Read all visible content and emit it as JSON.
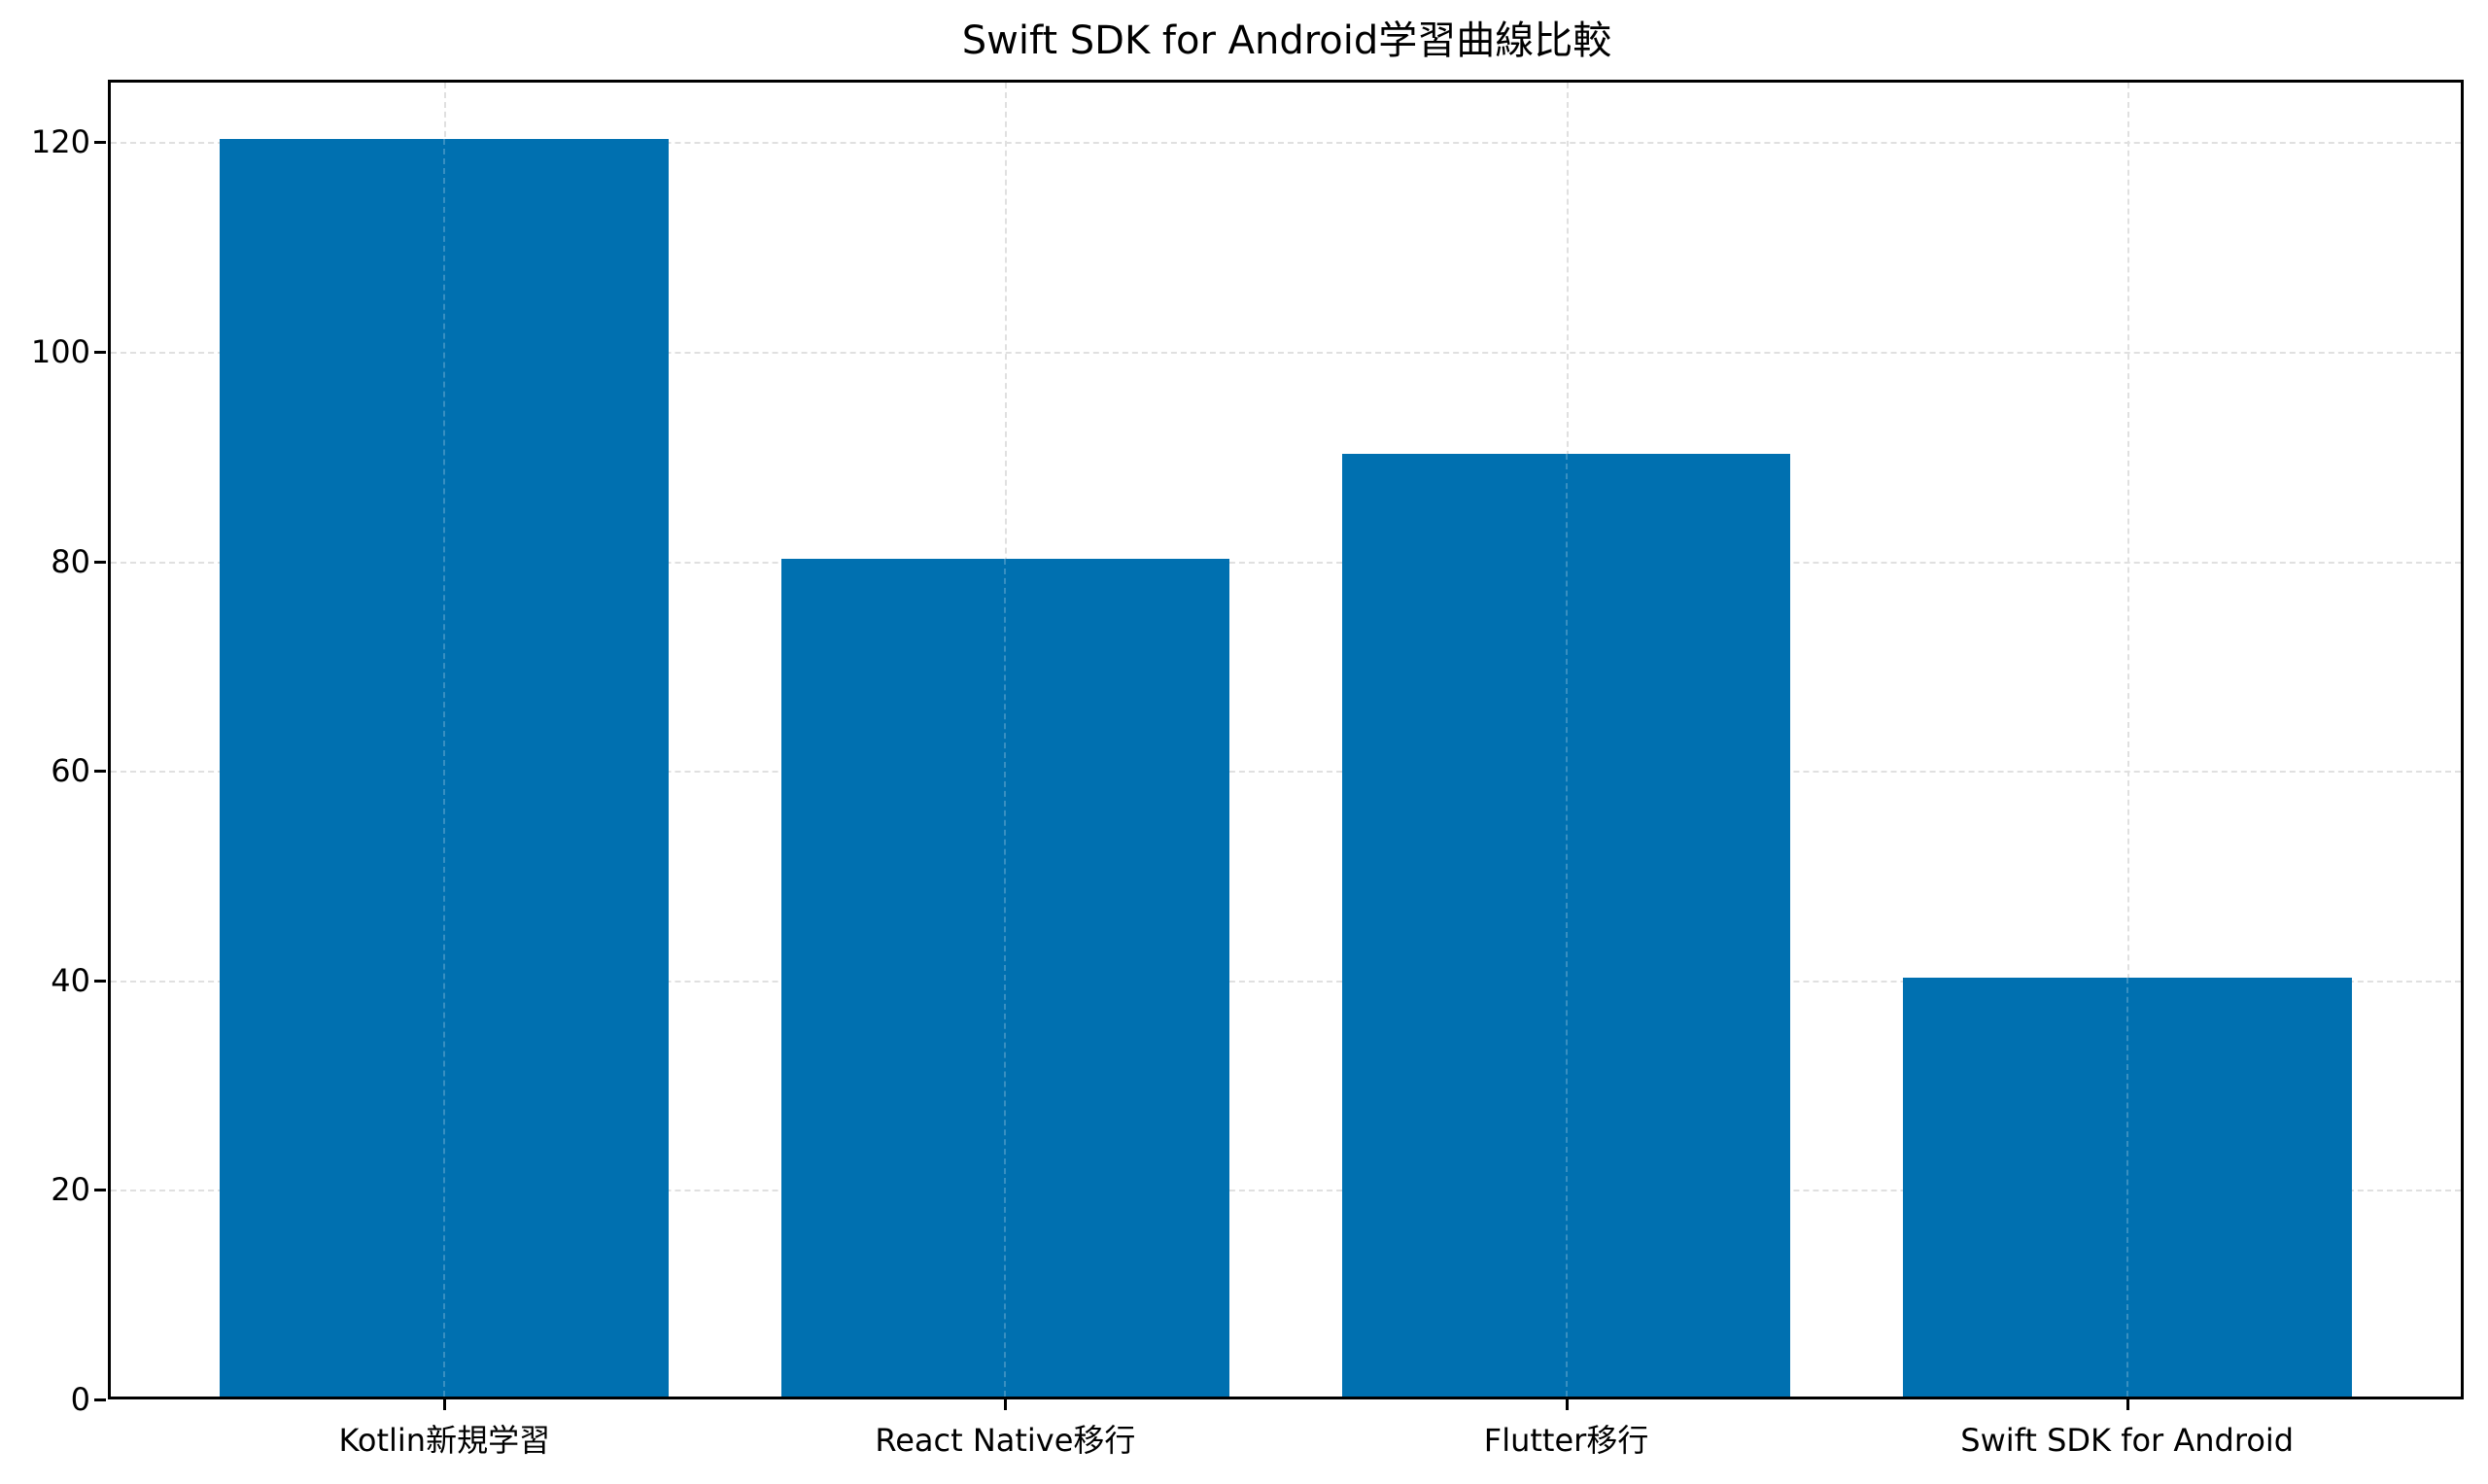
{
  "chart_data": {
    "type": "bar",
    "title": "Swift SDK for Android学習曲線比較",
    "categories": [
      "Kotlin新規学習",
      "React Native移行",
      "Flutter移行",
      "Swift SDK for Android"
    ],
    "values": [
      120,
      80,
      90,
      40
    ],
    "xlabel": "",
    "ylabel": "",
    "ylim": [
      0,
      126
    ],
    "yticks": [
      0,
      20,
      40,
      60,
      80,
      100,
      120
    ],
    "grid": true,
    "grid_style": "dashed",
    "legend": null,
    "bar_color": "#0070B0"
  },
  "labels": {
    "title": "Swift SDK for Android学習曲線比較",
    "yticks": [
      "0",
      "20",
      "40",
      "60",
      "80",
      "100",
      "120"
    ],
    "xticks": [
      "Kotlin新規学習",
      "React Native移行",
      "Flutter移行",
      "Swift SDK for Android"
    ]
  }
}
